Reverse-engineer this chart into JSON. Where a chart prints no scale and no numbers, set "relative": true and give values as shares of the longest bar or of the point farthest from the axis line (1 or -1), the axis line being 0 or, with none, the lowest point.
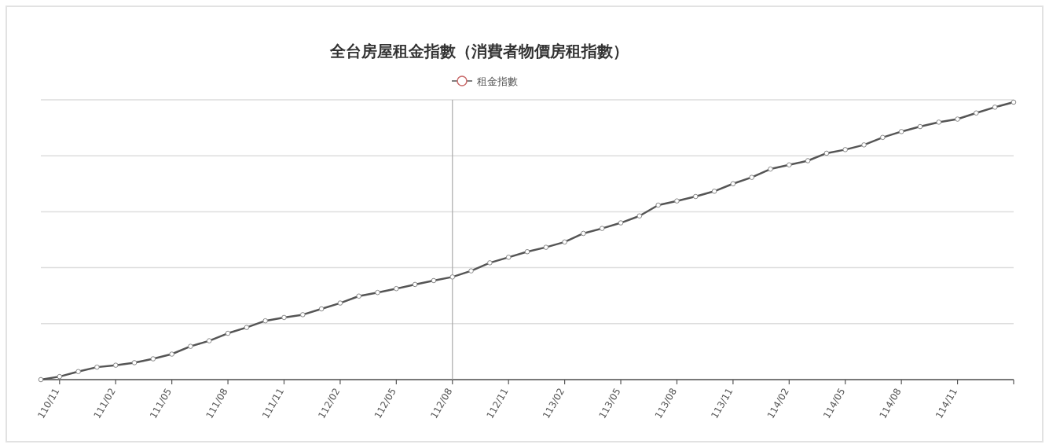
{
  "chart_data": {
    "type": "line",
    "title": "全台房屋租金指數（消費者物價房租指數）",
    "relative": true,
    "categories": [
      null,
      "110/11",
      null,
      null,
      "111/02",
      null,
      null,
      "111/05",
      null,
      null,
      "111/08",
      null,
      null,
      "111/11",
      null,
      null,
      "112/02",
      null,
      null,
      "112/05",
      null,
      null,
      "112/08",
      null,
      null,
      "112/11",
      null,
      null,
      "113/02",
      null,
      null,
      "113/05",
      null,
      null,
      "113/08",
      null,
      null,
      "113/11",
      null,
      null,
      "114/02",
      null,
      null,
      "114/05",
      null,
      null,
      "114/08",
      null,
      null,
      "114/11",
      null,
      null,
      null
    ],
    "series": [
      {
        "name": "租金指數",
        "color": "#555555",
        "values": [
          0,
          0.011,
          0.029,
          0.045,
          0.052,
          0.061,
          0.075,
          0.092,
          0.12,
          0.14,
          0.167,
          0.188,
          0.212,
          0.224,
          0.234,
          0.255,
          0.276,
          0.301,
          0.314,
          0.328,
          0.343,
          0.357,
          0.37,
          0.392,
          0.421,
          0.441,
          0.461,
          0.477,
          0.496,
          0.527,
          0.545,
          0.565,
          0.59,
          0.629,
          0.644,
          0.66,
          0.679,
          0.706,
          0.729,
          0.759,
          0.774,
          0.789,
          0.816,
          0.829,
          0.846,
          0.873,
          0.894,
          0.912,
          0.928,
          0.939,
          0.961,
          0.982,
          1
        ]
      }
    ],
    "ref_lines": [
      {
        "axis": "x",
        "value": "112/08",
        "color": "#aaaaaa"
      }
    ],
    "grid": "y",
    "legend": "top",
    "marker": "circle",
    "line_style": "solid"
  }
}
